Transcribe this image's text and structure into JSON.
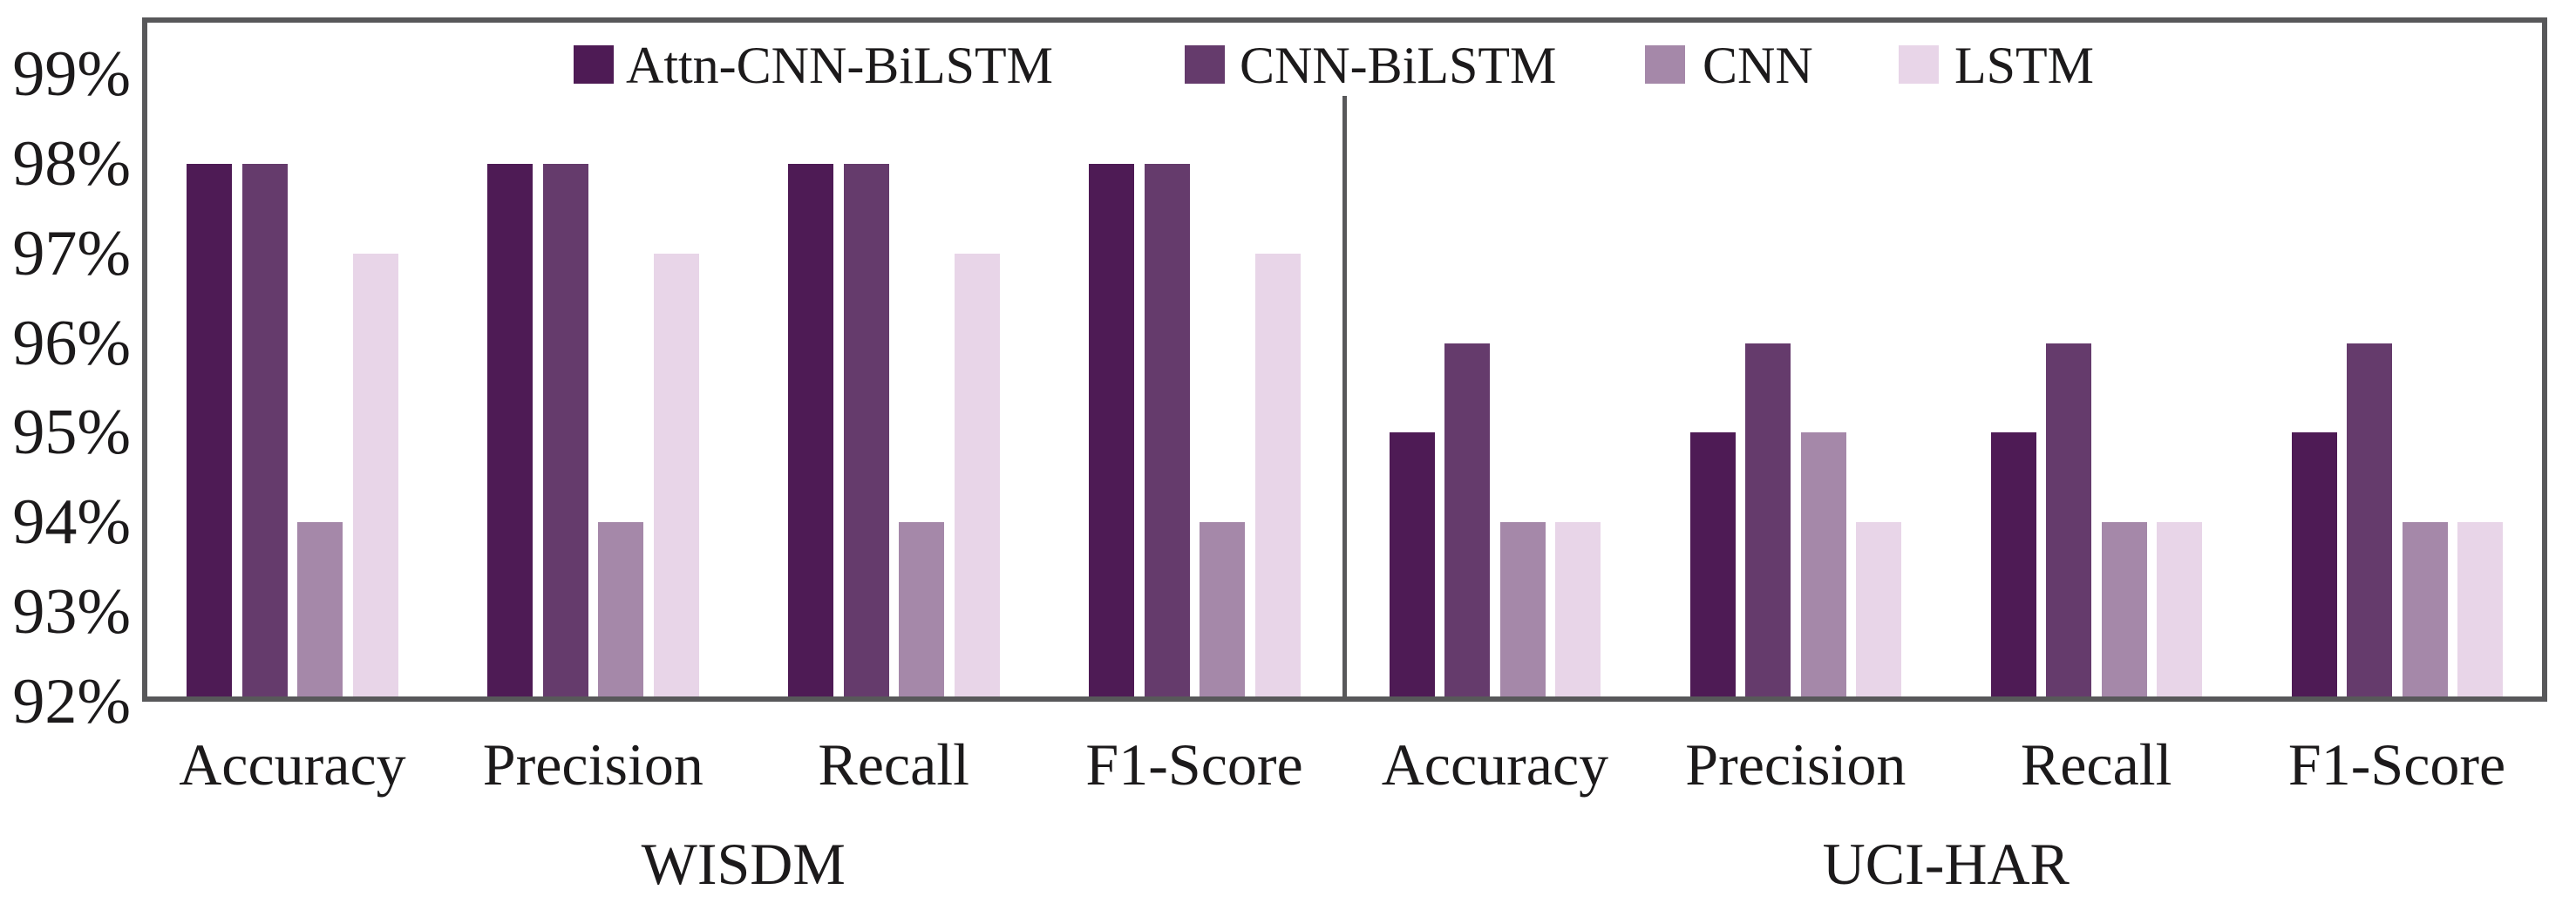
{
  "figure": {
    "background_color": "#ffffff",
    "frame_color": "#58585a",
    "text_color": "#1c1a1b",
    "unit": "percent"
  },
  "legend": {
    "items": [
      {
        "label": "Attn-CNN-BiLSTM",
        "color": "#4E1B55"
      },
      {
        "label": "CNN-BiLSTM",
        "color": "#653B6C"
      },
      {
        "label": "CNN",
        "color": "#A588A9"
      },
      {
        "label": "LSTM",
        "color": "#E8D5E8"
      }
    ]
  },
  "chart_data": {
    "type": "bar",
    "title": "",
    "xlabel": "",
    "ylabel": "",
    "ylim": [
      92,
      99
    ],
    "ytick_labels": [
      "99%",
      "98%",
      "97%",
      "96%",
      "95%",
      "94%",
      "93%",
      "92%"
    ],
    "grid": false,
    "legend_position": "top",
    "series_names": [
      "Attn-CNN-BiLSTM",
      "CNN-BiLSTM",
      "CNN",
      "LSTM"
    ],
    "panels": [
      {
        "label": "WISDM",
        "categories": [
          "Accuracy",
          "Precision",
          "Recall",
          "F1-Score"
        ],
        "series": [
          {
            "name": "Attn-CNN-BiLSTM",
            "color": "#4E1B55",
            "values": [
              98,
              98,
              98,
              98
            ]
          },
          {
            "name": "CNN-BiLSTM",
            "color": "#653B6C",
            "values": [
              98,
              98,
              98,
              98
            ]
          },
          {
            "name": "CNN",
            "color": "#A588A9",
            "values": [
              94,
              94,
              94,
              94
            ]
          },
          {
            "name": "LSTM",
            "color": "#E8D5E8",
            "values": [
              97,
              97,
              97,
              97
            ]
          }
        ]
      },
      {
        "label": "UCI-HAR",
        "categories": [
          "Accuracy",
          "Precision",
          "Recall",
          "F1-Score"
        ],
        "series": [
          {
            "name": "Attn-CNN-BiLSTM",
            "color": "#4E1B55",
            "values": [
              95,
              95,
              95,
              95
            ]
          },
          {
            "name": "CNN-BiLSTM",
            "color": "#653B6C",
            "values": [
              96,
              96,
              96,
              96
            ]
          },
          {
            "name": "CNN",
            "color": "#A588A9",
            "values": [
              94,
              95,
              94,
              94
            ]
          },
          {
            "name": "LSTM",
            "color": "#E8D5E8",
            "values": [
              94,
              94,
              94,
              94
            ]
          }
        ]
      }
    ]
  }
}
